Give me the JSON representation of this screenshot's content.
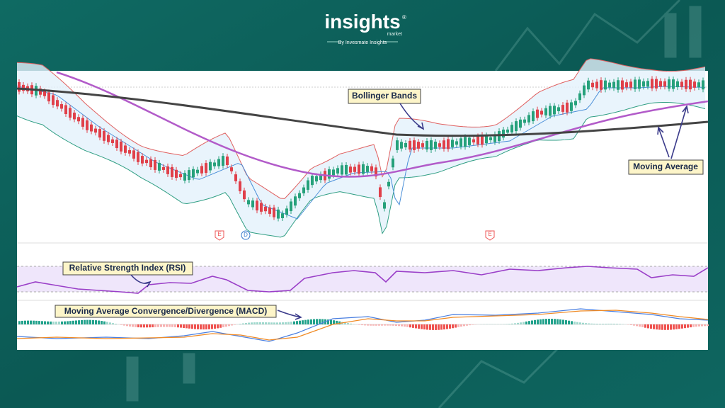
{
  "header": {
    "brand": "insights",
    "registered_mark": "®",
    "brand_sub": "market",
    "tagline": "By Invesmate Insights"
  },
  "annotations": {
    "bollinger": "Bollinger Bands",
    "moving_average": "Moving Average",
    "rsi": "Relative Strength Index (RSI)",
    "macd": "Moving Average Convergence/Divergence (MACD)"
  },
  "event_markers": [
    "E",
    "D",
    "E"
  ]
}
